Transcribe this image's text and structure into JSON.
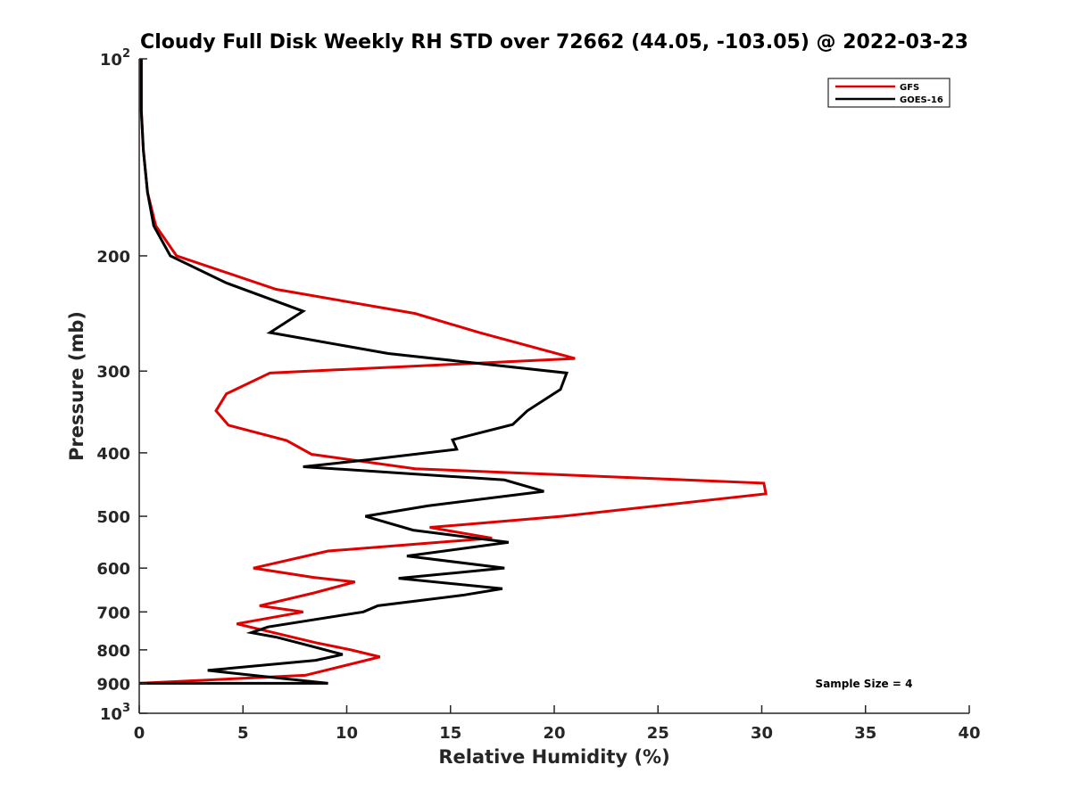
{
  "chart_data": {
    "type": "line",
    "title": "Cloudy Full Disk Weekly RH STD over 72662 (44.05, -103.05) @ 2022-03-23",
    "xlabel": "Relative Humidity (%)",
    "ylabel": "Pressure (mb)",
    "xlim": [
      0,
      40
    ],
    "ylim": [
      100,
      1000
    ],
    "y_scale": "log",
    "y_reversed": true,
    "grid": false,
    "legend_position": "top-right",
    "x_ticks": [
      0,
      5,
      10,
      15,
      20,
      25,
      30,
      35,
      40
    ],
    "x_tick_labels": [
      "0",
      "5",
      "10",
      "15",
      "20",
      "25",
      "30",
      "35",
      "40"
    ],
    "y_ticks": [
      100,
      200,
      300,
      400,
      500,
      600,
      700,
      800,
      900,
      1000
    ],
    "y_tick_labels": [
      {
        "base": "10",
        "exp": "2"
      },
      {
        "base": "200",
        "exp": ""
      },
      {
        "base": "300",
        "exp": ""
      },
      {
        "base": "400",
        "exp": ""
      },
      {
        "base": "500",
        "exp": ""
      },
      {
        "base": "600",
        "exp": ""
      },
      {
        "base": "700",
        "exp": ""
      },
      {
        "base": "800",
        "exp": ""
      },
      {
        "base": "900",
        "exp": ""
      },
      {
        "base": "10",
        "exp": "3"
      }
    ],
    "series": [
      {
        "name": "GFS",
        "color": "#e00000",
        "points": [
          [
            0.0,
            900
          ],
          [
            8.0,
            875
          ],
          [
            11.6,
            820
          ],
          [
            10.2,
            800
          ],
          [
            8.5,
            780
          ],
          [
            4.7,
            730
          ],
          [
            7.9,
            700
          ],
          [
            5.8,
            685
          ],
          [
            8.4,
            655
          ],
          [
            10.4,
            630
          ],
          [
            8.4,
            620
          ],
          [
            5.5,
            600
          ],
          [
            9.1,
            565
          ],
          [
            17.0,
            540
          ],
          [
            14.0,
            520
          ],
          [
            20.4,
            500
          ],
          [
            30.2,
            462
          ],
          [
            30.1,
            445
          ],
          [
            13.3,
            423
          ],
          [
            8.3,
            402
          ],
          [
            7.1,
            383
          ],
          [
            4.3,
            363
          ],
          [
            3.7,
            345
          ],
          [
            4.2,
            325
          ],
          [
            6.3,
            302
          ],
          [
            21.0,
            287
          ],
          [
            16.4,
            262
          ],
          [
            13.3,
            245
          ],
          [
            6.6,
            225
          ],
          [
            1.8,
            200
          ],
          [
            0.8,
            180
          ],
          [
            0.4,
            160
          ],
          [
            0.2,
            138
          ],
          [
            0.1,
            120
          ],
          [
            0.1,
            100
          ]
        ]
      },
      {
        "name": "GOES-16",
        "color": "#000000",
        "points": [
          [
            0.0,
            900
          ],
          [
            9.1,
            900
          ],
          [
            3.3,
            860
          ],
          [
            8.5,
            830
          ],
          [
            9.8,
            813
          ],
          [
            8.3,
            790
          ],
          [
            6.6,
            765
          ],
          [
            5.4,
            753
          ],
          [
            6.2,
            738
          ],
          [
            10.8,
            700
          ],
          [
            11.5,
            685
          ],
          [
            15.6,
            660
          ],
          [
            17.5,
            645
          ],
          [
            12.5,
            622
          ],
          [
            17.6,
            600
          ],
          [
            12.9,
            575
          ],
          [
            17.8,
            548
          ],
          [
            13.2,
            525
          ],
          [
            10.9,
            500
          ],
          [
            13.9,
            482
          ],
          [
            19.5,
            458
          ],
          [
            17.6,
            440
          ],
          [
            7.9,
            420
          ],
          [
            11.0,
            410
          ],
          [
            15.3,
            395
          ],
          [
            15.1,
            382
          ],
          [
            18.0,
            362
          ],
          [
            18.7,
            345
          ],
          [
            20.3,
            320
          ],
          [
            20.6,
            302
          ],
          [
            12.0,
            282
          ],
          [
            6.3,
            262
          ],
          [
            7.9,
            243
          ],
          [
            4.2,
            220
          ],
          [
            1.5,
            200
          ],
          [
            0.7,
            180
          ],
          [
            0.4,
            160
          ],
          [
            0.2,
            138
          ],
          [
            0.1,
            120
          ],
          [
            0.1,
            100
          ]
        ]
      }
    ],
    "legend": [
      {
        "label": "GFS",
        "color": "#e00000"
      },
      {
        "label": "GOES-16",
        "color": "#000000"
      }
    ],
    "annotation": "Sample Size = 4"
  }
}
